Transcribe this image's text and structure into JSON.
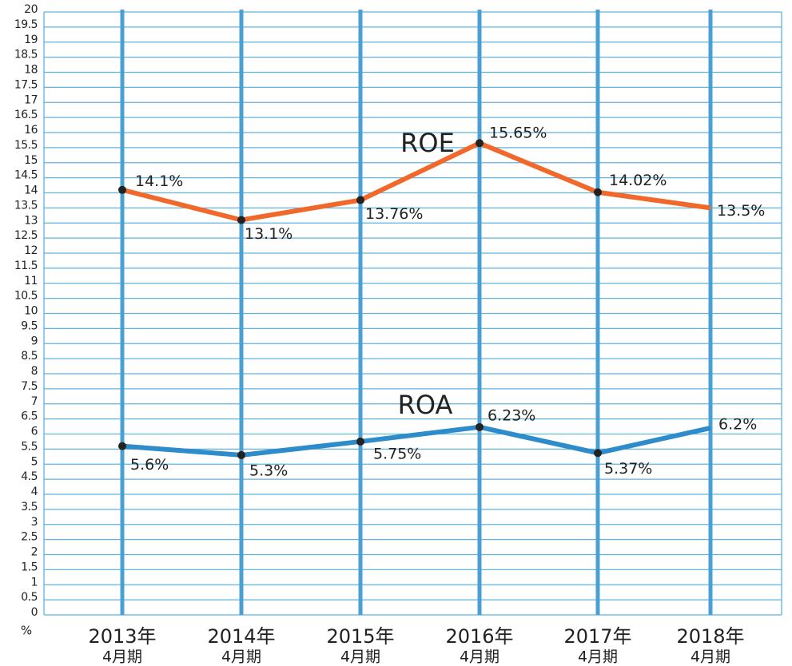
{
  "chart_data": {
    "type": "line",
    "categories": [
      [
        "2013年",
        "4月期"
      ],
      [
        "2014年",
        "4月期"
      ],
      [
        "2015年",
        "4月期"
      ],
      [
        "2016年",
        "4月期"
      ],
      [
        "2017年",
        "4月期"
      ],
      [
        "2018年",
        "4月期"
      ]
    ],
    "series": [
      {
        "name": "ROE",
        "color": "#f0692a",
        "values": [
          14.1,
          13.1,
          13.76,
          15.65,
          14.02,
          13.5
        ],
        "value_labels": [
          "14.1%",
          "13.1%",
          "13.76%",
          "15.65%",
          "14.02%",
          "13.5%"
        ]
      },
      {
        "name": "ROA",
        "color": "#2f8ccb",
        "values": [
          5.6,
          5.3,
          5.75,
          6.23,
          5.37,
          6.2
        ],
        "value_labels": [
          "5.6%",
          "5.3%",
          "5.75%",
          "6.23%",
          "5.37%",
          "6.2%"
        ]
      }
    ],
    "y_axis_label": "%",
    "ylim": [
      0,
      20
    ],
    "yticks": [
      0,
      0.5,
      1,
      1.5,
      2,
      2.5,
      3,
      3.5,
      4,
      4.5,
      5,
      5.5,
      6,
      6.5,
      7,
      7.5,
      8,
      8.5,
      9,
      9.5,
      10,
      10.5,
      11,
      11.5,
      12,
      12.5,
      13,
      13.5,
      14,
      14.5,
      15,
      15.5,
      16,
      16.5,
      17,
      17.5,
      18,
      18.5,
      19,
      19.5,
      20
    ],
    "grid": true
  }
}
